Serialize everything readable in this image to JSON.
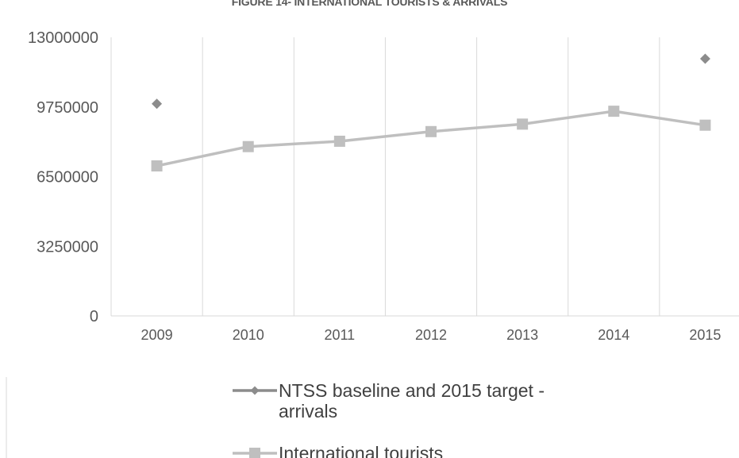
{
  "chart_data": {
    "type": "line",
    "title": "FIGURE 14- INTERNATIONAL TOURISTS & ARRIVALS",
    "x": [
      "2009",
      "2010",
      "2011",
      "2012",
      "2013",
      "2014",
      "2015"
    ],
    "y_ticks": [
      "0",
      "3250000",
      "6500000",
      "9750000",
      "13000000"
    ],
    "ylim": [
      0,
      13000000
    ],
    "grid": "vertical",
    "legend_position": "bottom",
    "series": [
      {
        "name": "NTSS baseline and 2015 target - arrivals",
        "marker": "diamond",
        "color": "#8c8c8c",
        "values": [
          9900000,
          null,
          null,
          null,
          null,
          null,
          12000000
        ]
      },
      {
        "name": "International  tourists",
        "marker": "square",
        "color": "#bfbfbf",
        "values": [
          7000000,
          7900000,
          8150000,
          8600000,
          8950000,
          9550000,
          8900000
        ]
      }
    ]
  }
}
